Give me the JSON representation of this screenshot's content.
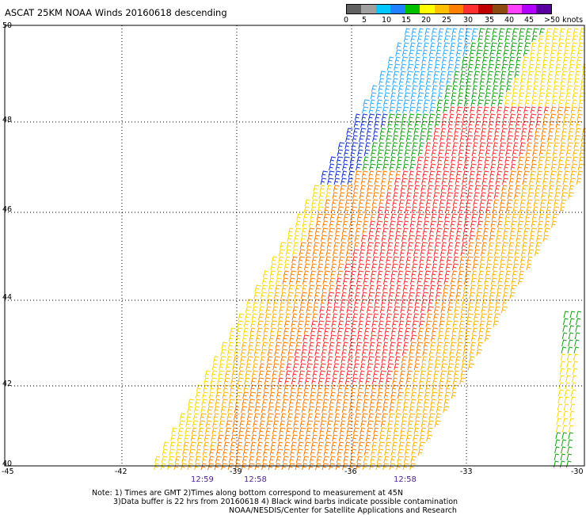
{
  "title": "ASCAT 25KM NOAA Winds 20160618 descending",
  "legend": {
    "labels": [
      "0",
      "5",
      "10",
      "15",
      "20",
      "25",
      "30",
      "35",
      "40",
      "45",
      ">50 knots"
    ],
    "colors": [
      "#606060",
      "#a0a0a0",
      "#00c8ff",
      "#2080ff",
      "#00c000",
      "#ffff00",
      "#ffc000",
      "#ff8000",
      "#ff3030",
      "#c00000",
      "#8c4a10",
      "#ff40ff",
      "#b000ff",
      "#5a00a0"
    ]
  },
  "lat_labels": [
    "50",
    "48",
    "46",
    "44",
    "42",
    "40"
  ],
  "lon_labels": [
    "-45",
    "-42",
    "-39",
    "-36",
    "-33",
    "-30"
  ],
  "time_labels": [
    "12:59",
    "12:58",
    "12:58"
  ],
  "notes": [
    "Note: 1) Times are GMT 2)Times along bottom correspond to measurement at 45N",
    "3)Data buffer is 22 hrs from 20160618 4) Black wind barbs indicate possible contamination",
    "NOAA/NESDIS/Center for Satellite Applications and Research"
  ]
}
